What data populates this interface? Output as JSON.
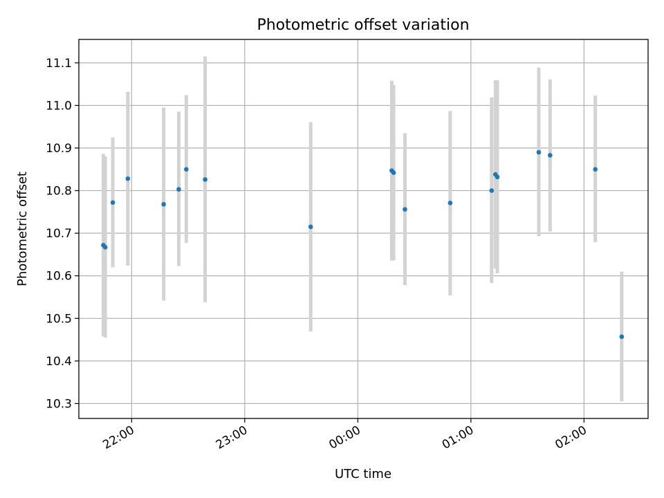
{
  "chart_data": {
    "type": "scatter",
    "title": "Photometric offset variation",
    "xlabel": "UTC time",
    "ylabel": "Photometric offset",
    "x_axis_kind": "time",
    "x_tick_labels": [
      "22:00",
      "23:00",
      "00:00",
      "01:00",
      "02:00"
    ],
    "y_tick_labels": [
      "10.3",
      "10.4",
      "10.5",
      "10.6",
      "10.7",
      "10.8",
      "10.9",
      "11.0",
      "11.1"
    ],
    "y_ticks": [
      10.3,
      10.4,
      10.5,
      10.6,
      10.7,
      10.8,
      10.9,
      11.0,
      11.1
    ],
    "xlim": [
      "21:32",
      "02:34"
    ],
    "ylim": [
      10.265,
      11.155
    ],
    "grid": true,
    "colors": {
      "points": "#1f77b4",
      "error_bars": "#d3d3d3",
      "grid": "#b0b0b0"
    },
    "series": [
      {
        "points": [
          {
            "x": "21:45",
            "y": 10.672,
            "y_low": 10.458,
            "y_high": 10.886
          },
          {
            "x": "21:46",
            "y": 10.667,
            "y_low": 10.455,
            "y_high": 10.88
          },
          {
            "x": "21:50",
            "y": 10.772,
            "y_low": 10.62,
            "y_high": 10.925
          },
          {
            "x": "21:58",
            "y": 10.828,
            "y_low": 10.624,
            "y_high": 11.032
          },
          {
            "x": "22:17",
            "y": 10.768,
            "y_low": 10.542,
            "y_high": 10.995
          },
          {
            "x": "22:25",
            "y": 10.803,
            "y_low": 10.623,
            "y_high": 10.985
          },
          {
            "x": "22:29",
            "y": 10.85,
            "y_low": 10.677,
            "y_high": 11.024
          },
          {
            "x": "22:39",
            "y": 10.826,
            "y_low": 10.538,
            "y_high": 11.115
          },
          {
            "x": "23:35",
            "y": 10.715,
            "y_low": 10.469,
            "y_high": 10.961
          },
          {
            "x": "00:18",
            "y": 10.847,
            "y_low": 10.636,
            "y_high": 11.058
          },
          {
            "x": "00:19",
            "y": 10.842,
            "y_low": 10.636,
            "y_high": 11.048
          },
          {
            "x": "00:25",
            "y": 10.756,
            "y_low": 10.578,
            "y_high": 10.935
          },
          {
            "x": "00:49",
            "y": 10.771,
            "y_low": 10.554,
            "y_high": 10.987
          },
          {
            "x": "01:11",
            "y": 10.8,
            "y_low": 10.583,
            "y_high": 11.019
          },
          {
            "x": "01:13",
            "y": 10.838,
            "y_low": 10.617,
            "y_high": 11.059
          },
          {
            "x": "01:14",
            "y": 10.832,
            "y_low": 10.606,
            "y_high": 11.059
          },
          {
            "x": "01:36",
            "y": 10.89,
            "y_low": 10.693,
            "y_high": 11.089
          },
          {
            "x": "01:42",
            "y": 10.883,
            "y_low": 10.704,
            "y_high": 11.061
          },
          {
            "x": "02:06",
            "y": 10.85,
            "y_low": 10.679,
            "y_high": 11.023
          },
          {
            "x": "02:20",
            "y": 10.457,
            "y_low": 10.305,
            "y_high": 10.61
          }
        ]
      }
    ]
  }
}
